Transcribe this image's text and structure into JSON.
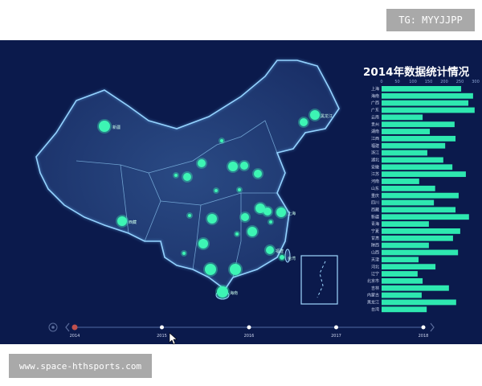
{
  "watermark_top": "TG: MYYJJPP",
  "watermark_bottom": "www.space-hthsports.com",
  "colors": {
    "background": "#0b1a4c",
    "bar": "#2ee8b0",
    "bubble": "#3df5b4",
    "timeline_active": "#c0504d"
  },
  "map": {
    "labels": [
      "新疆",
      "西藏",
      "黑龙江",
      "上海",
      "福建",
      "台湾",
      "海南"
    ]
  },
  "timeline": {
    "years": [
      "2014",
      "2015",
      "2016",
      "2017",
      "2018"
    ],
    "active_year": "2014",
    "play_icon": "play-circle-icon",
    "prev_icon": "chevron-left-icon",
    "next_icon": "chevron-right-icon"
  },
  "chart_data": {
    "type": "bar",
    "orientation": "horizontal",
    "title": "2014年数据统计情况",
    "xlim": [
      0,
      300
    ],
    "xticks": [
      "0",
      "50",
      "100",
      "150",
      "200",
      "250",
      "300"
    ],
    "grid": false,
    "categories": [
      "上海",
      "海南",
      "广西",
      "广东",
      "云南",
      "贵州",
      "湖南",
      "江西",
      "福建",
      "浙江",
      "湖北",
      "安徽",
      "江苏",
      "河南",
      "山东",
      "重庆",
      "四川",
      "西藏",
      "新疆",
      "青海",
      "宁夏",
      "甘肃",
      "陕西",
      "山西",
      "天津",
      "河北",
      "辽宁",
      "北京市",
      "吉林",
      "内蒙古",
      "黑龙江",
      "台湾"
    ],
    "values": [
      254,
      292,
      277,
      297,
      131,
      233,
      154,
      236,
      203,
      146,
      197,
      226,
      269,
      120,
      171,
      246,
      167,
      236,
      279,
      151,
      251,
      228,
      151,
      244,
      118,
      172,
      115,
      131,
      215,
      128,
      238,
      144
    ]
  }
}
